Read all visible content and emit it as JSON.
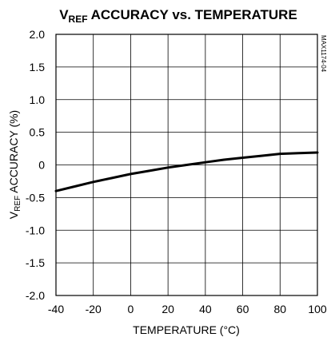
{
  "chart_data": {
    "type": "line",
    "title": {
      "prefix": "V",
      "subscript": "REF",
      "rest": " ACCURACY vs. TEMPERATURE"
    },
    "xlabel": "TEMPERATURE (°C)",
    "ylabel": {
      "prefix": "V",
      "subscript": "REF",
      "rest": " ACCURACY (%)"
    },
    "side_code": "MAX1174-04",
    "xlim": [
      -40,
      100
    ],
    "ylim": [
      -2.0,
      2.0
    ],
    "x_ticks": [
      {
        "value": -40,
        "label": "-40"
      },
      {
        "value": -20,
        "label": "-20"
      },
      {
        "value": 0,
        "label": "0"
      },
      {
        "value": 20,
        "label": "20"
      },
      {
        "value": 40,
        "label": "40"
      },
      {
        "value": 60,
        "label": "60"
      },
      {
        "value": 80,
        "label": "80"
      },
      {
        "value": 100,
        "label": "100"
      }
    ],
    "y_ticks": [
      {
        "value": 2.0,
        "label": "2.0"
      },
      {
        "value": 1.5,
        "label": "1.5"
      },
      {
        "value": 1.0,
        "label": "1.0"
      },
      {
        "value": 0.5,
        "label": "0.5"
      },
      {
        "value": 0,
        "label": "0"
      },
      {
        "value": -0.5,
        "label": "-0.5"
      },
      {
        "value": -1.0,
        "label": "-1.0"
      },
      {
        "value": -1.5,
        "label": "-1.5"
      },
      {
        "value": -2.0,
        "label": "-2.0"
      }
    ],
    "grid": true,
    "series": [
      {
        "color": "#000000",
        "x": [
          -40,
          -30,
          -20,
          -10,
          0,
          10,
          20,
          30,
          40,
          50,
          60,
          70,
          80,
          90,
          100
        ],
        "y": [
          -0.4,
          -0.33,
          -0.26,
          -0.2,
          -0.14,
          -0.09,
          -0.04,
          0.0,
          0.04,
          0.08,
          0.11,
          0.14,
          0.17,
          0.18,
          0.19
        ]
      }
    ]
  }
}
